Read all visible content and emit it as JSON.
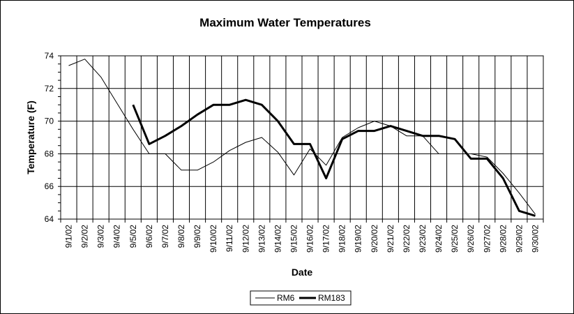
{
  "chart_data": {
    "type": "line",
    "title": "Maximum Water Temperatures",
    "xlabel": "Date",
    "ylabel": "Temperature (F)",
    "ylim": [
      64,
      74
    ],
    "yticks": [
      64,
      66,
      68,
      70,
      72,
      74
    ],
    "grid": true,
    "legend_position": "bottom-center",
    "categories": [
      "9/1/02",
      "9/2/02",
      "9/3/02",
      "9/4/02",
      "9/5/02",
      "9/6/02",
      "9/7/02",
      "9/8/02",
      "9/9/02",
      "9/10/02",
      "9/11/02",
      "9/12/02",
      "9/13/02",
      "9/14/02",
      "9/15/02",
      "9/16/02",
      "9/17/02",
      "9/18/02",
      "9/19/02",
      "9/20/02",
      "9/21/02",
      "9/22/02",
      "9/23/02",
      "9/24/02",
      "9/25/02",
      "9/26/02",
      "9/27/02",
      "9/28/02",
      "9/29/02",
      "9/30/02"
    ],
    "series": [
      {
        "name": "RM6",
        "color": "#000000",
        "style": "thin",
        "values": [
          73.4,
          73.8,
          72.7,
          71.1,
          69.5,
          68.0,
          68.0,
          67.0,
          67.0,
          67.5,
          68.2,
          68.7,
          69.0,
          68.1,
          66.7,
          68.3,
          67.3,
          69.0,
          69.6,
          70.0,
          69.7,
          69.1,
          69.1,
          68.0,
          null,
          68.0,
          67.8,
          66.8,
          65.6,
          64.3
        ]
      },
      {
        "name": "RM183",
        "color": "#000000",
        "style": "thick",
        "values": [
          null,
          null,
          null,
          null,
          71.0,
          68.6,
          69.1,
          69.7,
          70.4,
          71.0,
          71.0,
          71.3,
          71.0,
          70.0,
          68.6,
          68.6,
          66.5,
          68.9,
          69.4,
          69.4,
          69.7,
          69.4,
          69.1,
          69.1,
          68.9,
          67.7,
          67.7,
          66.5,
          64.5,
          64.2
        ]
      }
    ]
  }
}
